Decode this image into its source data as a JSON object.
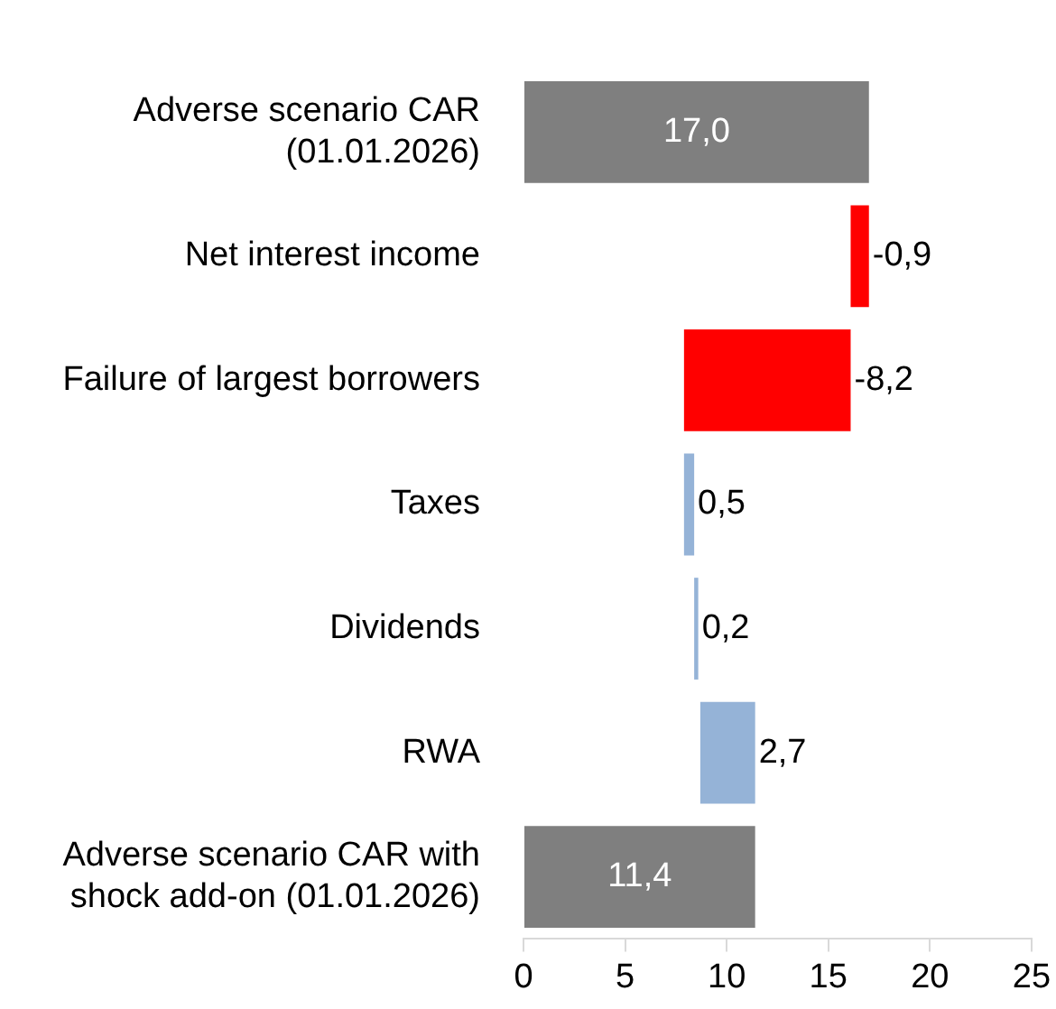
{
  "chart_data": {
    "type": "bar",
    "orientation": "horizontal",
    "categories": [
      "Adverse scenario CAR (01.01.2026)",
      "Net interest income",
      "Failure of largest borrowers",
      "Taxes",
      "Dividends",
      "RWA",
      "Adverse scenario CAR with shock add-on (01.01.2026)"
    ],
    "base": [
      0,
      17.0,
      16.1,
      7.9,
      8.4,
      8.7,
      0
    ],
    "values": [
      17.0,
      -0.9,
      -8.2,
      0.5,
      0.2,
      2.7,
      11.4
    ],
    "colors": [
      "#7f7f7f",
      "#ff0000",
      "#ff0000",
      "#95b3d7",
      "#95b3d7",
      "#95b3d7",
      "#7f7f7f"
    ],
    "value_labels": [
      "17,0",
      "-0,9",
      "-8,2",
      "0,5",
      "0,2",
      "2,7",
      "11,4"
    ],
    "xlim": [
      0,
      25
    ],
    "xticks": [
      0,
      5,
      10,
      15,
      20,
      25
    ],
    "grid": false,
    "legend": false
  }
}
